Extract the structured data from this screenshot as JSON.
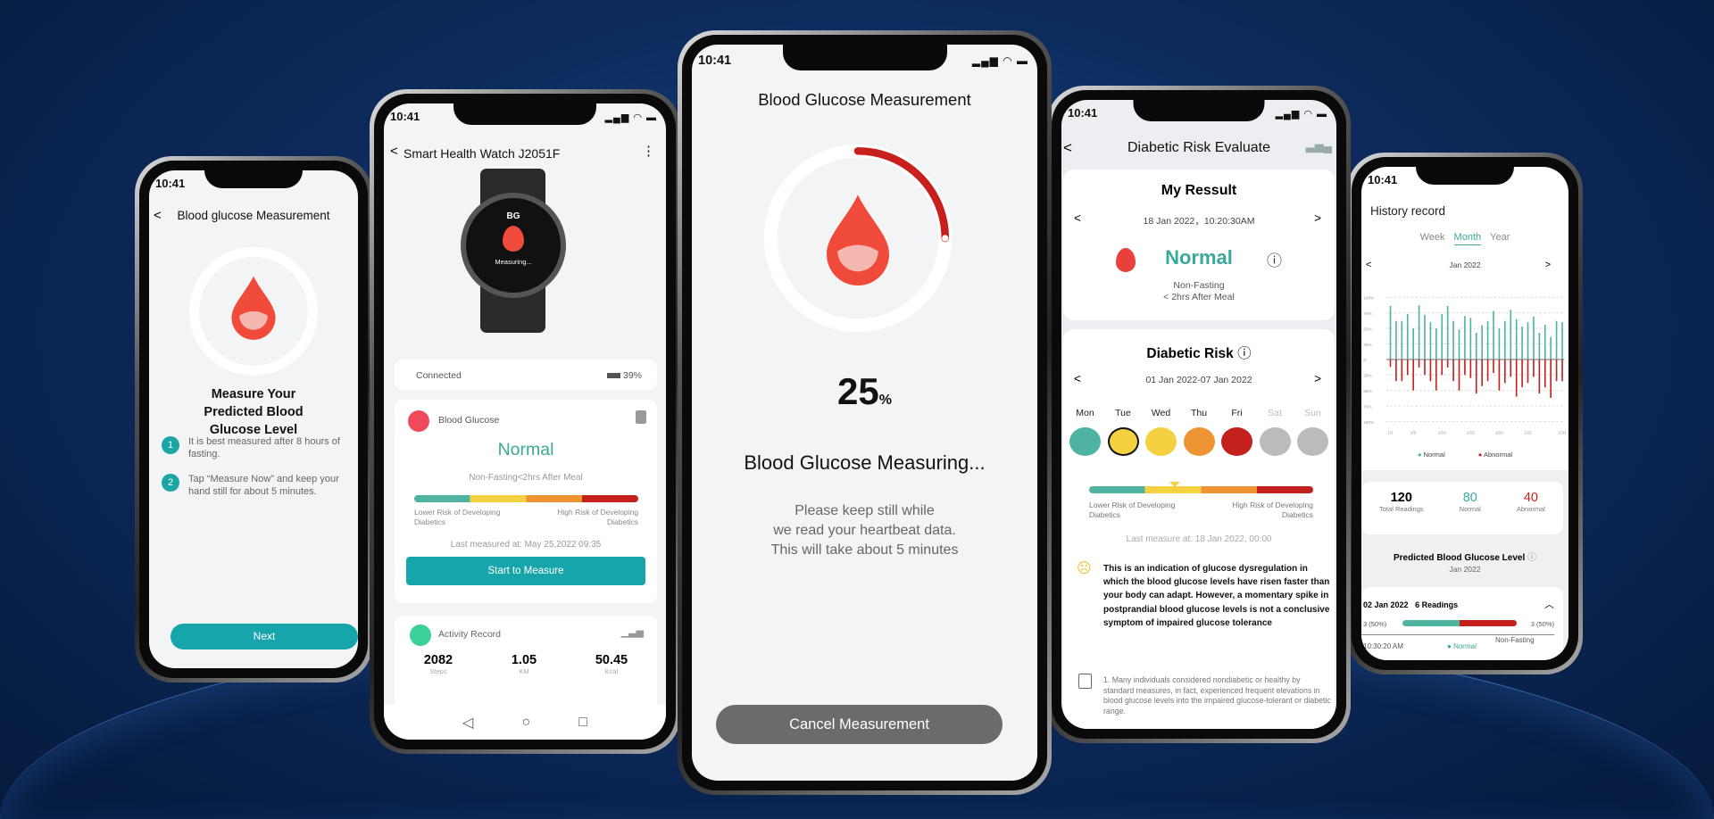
{
  "status_time": "10:41",
  "colors": {
    "teal": "#3aa89a",
    "button": "#17a5ac",
    "red": "#d4231d",
    "yellow": "#f5d040",
    "orange": "#ee9433",
    "gray": "#bbbbbb"
  },
  "phone1": {
    "title": "Blood glucose Measurement",
    "heading": "Measure Your Predicted Blood Glucose Level",
    "steps": [
      {
        "num": "1",
        "text": "It is best measured after 8 hours of fasting."
      },
      {
        "num": "2",
        "text": "Tap “Measure Now” and keep your hand still for about 5 minutes."
      }
    ],
    "next_label": "Next",
    "icon": "blood-drop-icon"
  },
  "phone2": {
    "title": "Smart Health Watch J2051F",
    "watch": {
      "label": "BG",
      "status": "Measuring..."
    },
    "connection": "Connected",
    "battery": "39%",
    "bg_card": {
      "title": "Blood Glucose",
      "status": "Normal",
      "condition": "Non-Fasting<2hrs After Meal",
      "low_label": "Lower Risk of Developing Diabetics",
      "high_label": "High Risk of Developing Diabetics",
      "last_measured": "Last measured at: May 25,2022 09:35",
      "button": "Start to Measure"
    },
    "activity": {
      "title": "Activity Record",
      "stats": [
        {
          "value": "2082",
          "unit": "Steps"
        },
        {
          "value": "1.05",
          "unit": "KM"
        },
        {
          "value": "50.45",
          "unit": "Kcal"
        }
      ]
    }
  },
  "phone3": {
    "title": "Blood Glucose Measurement",
    "progress": 25,
    "progress_number": "25",
    "progress_unit": "%",
    "status": "Blood Glucose Measuring...",
    "instructions": [
      "Please keep still while",
      "we read your heartbeat data.",
      "This will take about 5 minutes"
    ],
    "cancel_label": "Cancel Measurement"
  },
  "phone4": {
    "title": "Diabetic Risk Evaluate",
    "result": {
      "heading": "My Ressult",
      "datetime": "18 Jan 2022，10:20:30AM",
      "status": "Normal",
      "condition_1": "Non-Fasting",
      "condition_2": "< 2hrs After Meal"
    },
    "risk": {
      "heading": "Diabetic Risk",
      "range": "01 Jan 2022-07 Jan 2022",
      "days": [
        {
          "label": "Mon",
          "color": "#4fb3a2"
        },
        {
          "label": "Tue",
          "color": "#f5d040",
          "selected": true
        },
        {
          "label": "Wed",
          "color": "#f5d040"
        },
        {
          "label": "Thu",
          "color": "#ee9433"
        },
        {
          "label": "Fri",
          "color": "#c4201c"
        },
        {
          "label": "Sat",
          "color": "#bbbbbb"
        },
        {
          "label": "Sun",
          "color": "#bbbbbb"
        }
      ],
      "low_label": "Lower Risk of Developing Diabetics",
      "high_label": "High Risk of Developing Diabetics",
      "last_measure": "Last measure at:  18 Jan 2022, 00:00",
      "message": "This is an indication of glucose dysregulation in which the blood glucose levels have risen faster than your body can adapt. However, a momentary spike in postprandial blood glucose levels is not a conclusive symptom of impaired glucose tolerance",
      "note": "1. Many individuals considered nondiabetic or healthy by standard measures, in fact, experienced frequent elevations in blood glucose levels into the impaired glucose-tolerant or diabetic range."
    }
  },
  "phone5": {
    "title": "History record",
    "tabs": [
      "Week",
      "Month",
      "Year"
    ],
    "active_tab": "Month",
    "period": "Jan 2022",
    "stats": [
      {
        "value": "120",
        "label": "Total Readings"
      },
      {
        "value": "80",
        "label": "Normal"
      },
      {
        "value": "40",
        "label": "Abnormal"
      }
    ],
    "predicted_title": "Predicted Blood Glucose Level",
    "predicted_period": "Jan 2022",
    "day": {
      "date": "02 Jan 2022",
      "readings": "6 Readings",
      "left": "3 (50%)",
      "right": "3 (50%)",
      "normal_share": 50,
      "time": "10:30:20 AM",
      "status": "Normal",
      "condition": "Non-Fasting"
    }
  },
  "chart_data": {
    "type": "bar",
    "y_tick_labels": [
      "100%",
      "75%",
      "50%",
      "25%",
      "0",
      "25%",
      "50%",
      "75%",
      "100%"
    ],
    "ylim": [
      -100,
      100
    ],
    "x_tick_labels": [
      "1/1",
      "1/5",
      "1/10",
      "1/15",
      "1/20",
      "1/25",
      "1/31"
    ],
    "grid": true,
    "legend_position": "bottom",
    "series": [
      {
        "name": "Normal",
        "color": "#4fb3a2",
        "values": [
          86,
          62,
          62,
          73,
          50,
          87,
          72,
          60,
          50,
          73,
          86,
          62,
          48,
          70,
          67,
          43,
          55,
          62,
          78,
          50,
          62,
          80,
          65,
          53,
          60,
          69,
          43,
          56,
          36,
          62,
          60
        ]
      },
      {
        "name": "Abnormal",
        "color": "#c4201c",
        "values": [
          12,
          35,
          35,
          25,
          50,
          13,
          25,
          35,
          50,
          25,
          13,
          35,
          50,
          25,
          30,
          55,
          43,
          35,
          22,
          50,
          38,
          28,
          60,
          45,
          38,
          28,
          55,
          45,
          62,
          35,
          35
        ]
      }
    ]
  }
}
